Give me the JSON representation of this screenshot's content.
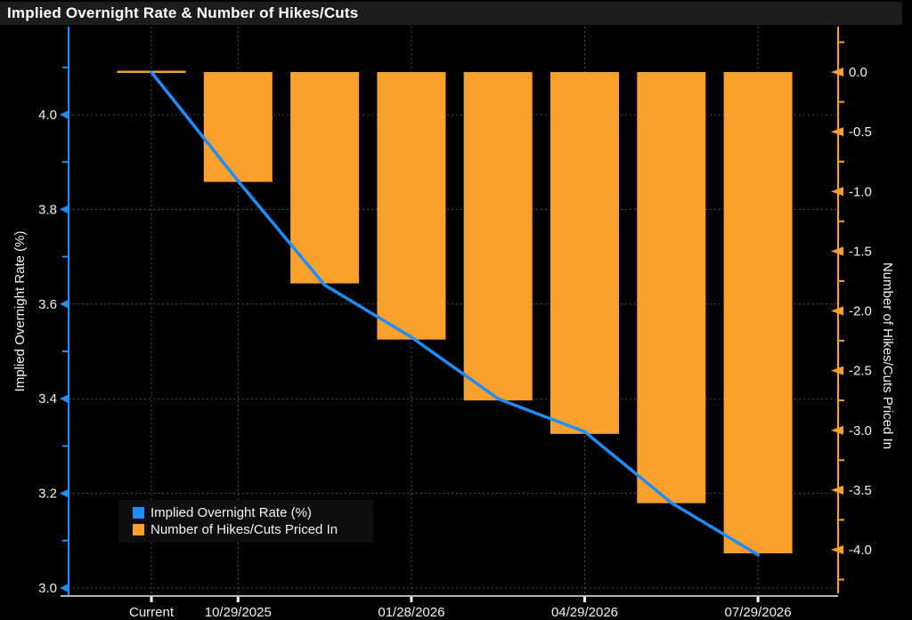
{
  "window": {
    "title": "Implied Overnight Rate & Number of Hikes/Cuts"
  },
  "colors": {
    "background": "#000000",
    "title_bar": "#1c1c1c",
    "line_blue": "#1f8dff",
    "bar_orange": "#faa02d",
    "grid": "#4d4d4d",
    "axis_text": "#f2f2f2",
    "x_axis_line": "#b3b3b3"
  },
  "legend": {
    "items": [
      {
        "label": "Implied Overnight Rate (%)",
        "color": "#1f8dff"
      },
      {
        "label": "Number of Hikes/Cuts Priced In",
        "color": "#faa02d"
      }
    ]
  },
  "chart_data": {
    "type": "line+bar dual-axis",
    "title": "Implied Overnight Rate & Number of Hikes/Cuts",
    "x_tick_labels": [
      "Current",
      "10/29/2025",
      "01/28/2026",
      "04/29/2026",
      "07/29/2026"
    ],
    "x_label_slots": [
      0,
      1,
      3,
      5,
      7
    ],
    "num_points": 8,
    "series": [
      {
        "name": "Implied Overnight Rate (%)",
        "type": "line",
        "axis": "left",
        "values": [
          4.09,
          3.86,
          3.64,
          3.53,
          3.4,
          3.33,
          3.18,
          3.07
        ]
      },
      {
        "name": "Number of Hikes/Cuts Priced In",
        "type": "bar",
        "axis": "right",
        "values": [
          0.0,
          -0.92,
          -1.77,
          -2.24,
          -2.75,
          -3.03,
          -3.61,
          -4.03
        ]
      }
    ],
    "left_axis": {
      "title": "Implied Overnight Rate (%)",
      "tick_labels": [
        "4.0",
        "3.8",
        "3.6",
        "3.4",
        "3.2",
        "3.0"
      ],
      "minor_ticks": [
        4.1,
        3.9,
        3.7,
        3.5,
        3.3,
        3.1
      ],
      "range": [
        2.98,
        4.19
      ]
    },
    "right_axis": {
      "title": "Number of Hikes/Cuts Priced In",
      "tick_labels": [
        "0.0",
        "-0.5",
        "-1.0",
        "-1.5",
        "-2.0",
        "-2.5",
        "-3.0",
        "-3.5",
        "-4.0"
      ],
      "minor_ticks": [
        0.25,
        -0.25,
        -0.75,
        -1.25,
        -1.75,
        -2.25,
        -2.75,
        -3.25,
        -3.75,
        -4.25
      ],
      "range": [
        -4.39,
        0.38
      ]
    },
    "grid": "dotted",
    "legend_position": "inside bottom-left"
  }
}
